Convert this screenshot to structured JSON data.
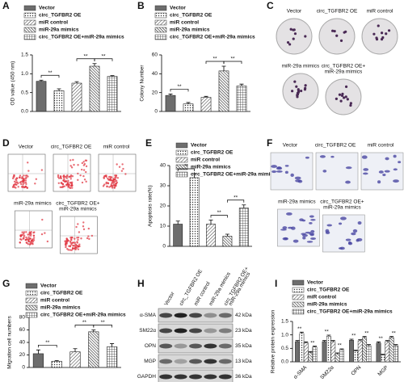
{
  "chart_data": [
    {
      "panel": "A",
      "type": "bar",
      "ylabel": "OD value (450 nm)",
      "categories": [
        "Vector",
        "circ_TGFBR2 OE",
        "miR control",
        "miR-29a mimics",
        "circ_TGFBR2 OE+miR-29a mimics"
      ],
      "values": [
        0.8,
        0.55,
        0.75,
        1.2,
        0.93
      ],
      "errors": [
        0.03,
        0.05,
        0.04,
        0.07,
        0.02
      ],
      "ylim": [
        0,
        1.5
      ],
      "yticks": [
        {
          "value": 0,
          "label": "0.0"
        },
        0.5,
        {
          "value": 1,
          "label": "1.0"
        },
        1.5
      ],
      "significance": [
        "**",
        "**",
        "**"
      ]
    },
    {
      "panel": "B",
      "type": "bar",
      "ylabel": "Colony Number",
      "categories": [
        "Vector",
        "circ_TGFBR2 OE",
        "miR control",
        "miR-29a mimics",
        "circ_TGFBR2 OE+miR-29a mimics"
      ],
      "values": [
        17,
        8,
        15,
        43,
        27
      ],
      "errors": [
        1.5,
        1.5,
        1,
        5,
        2
      ],
      "ylim": [
        0,
        60
      ],
      "yticks": [
        0,
        20,
        40,
        60
      ],
      "significance": [
        "**",
        "**",
        "**"
      ]
    },
    {
      "panel": "E",
      "type": "bar",
      "ylabel": "Apoptosis rate(%)",
      "categories": [
        "Vector",
        "circ_TGFBR2 OE",
        "miR control",
        "miR-29a mimics",
        "circ_TGFBR2 OE+miR-29a mimics"
      ],
      "values": [
        11,
        34,
        11,
        5,
        19
      ],
      "errors": [
        1.5,
        2,
        2,
        1,
        1.5
      ],
      "ylim": [
        0,
        40
      ],
      "yticks": [
        0,
        10,
        20,
        30,
        40
      ],
      "significance": [
        "**",
        "**",
        "**"
      ]
    },
    {
      "panel": "G",
      "type": "bar",
      "ylabel": "Migration cell numbers",
      "categories": [
        "Vector",
        "circ_TGFBR2 OE",
        "miR control",
        "miR-29a mimics",
        "circ_TGFBR2 OE+miR-29a mimics"
      ],
      "values": [
        22,
        10,
        25,
        57,
        33
      ],
      "errors": [
        6,
        1,
        5,
        3,
        5
      ],
      "ylim": [
        0,
        80
      ],
      "yticks": [
        0,
        20,
        40,
        60,
        80
      ],
      "significance": [
        "**",
        "**",
        "**"
      ]
    },
    {
      "panel": "I",
      "type": "grouped_bar",
      "ylabel": "Relative protein expression",
      "categories": [
        "α-SMA",
        "SM22α",
        "OPN",
        "MGP"
      ],
      "series": [
        {
          "name": "Vector",
          "values": [
            0.75,
            0.75,
            0.8,
            0.7
          ],
          "errors": [
            0.04,
            0.04,
            0.04,
            0.04
          ]
        },
        {
          "name": "circ_TGFBR2 OE",
          "values": [
            1.05,
            0.95,
            0.4,
            0.25
          ],
          "errors": [
            0.05,
            0.04,
            0.03,
            0.03
          ]
        },
        {
          "name": "miR control",
          "values": [
            0.7,
            0.75,
            0.78,
            0.75
          ],
          "errors": [
            0.04,
            0.04,
            0.04,
            0.04
          ]
        },
        {
          "name": "miR-29a mimics",
          "values": [
            0.35,
            0.3,
            0.9,
            0.9
          ],
          "errors": [
            0.03,
            0.03,
            0.04,
            0.04
          ]
        },
        {
          "name": "circ_TGFBR2 OE+miR-29a mimics",
          "values": [
            0.55,
            0.45,
            0.6,
            0.6
          ],
          "errors": [
            0.03,
            0.03,
            0.04,
            0.04
          ]
        }
      ],
      "ylim": [
        0,
        1.5
      ],
      "yticks": [
        {
          "value": 0,
          "label": "0.0"
        },
        0.5,
        {
          "value": 1,
          "label": "1.0"
        },
        1.5
      ],
      "significance": [
        "**",
        "**",
        "**",
        "**",
        "**",
        "**",
        "**",
        "**"
      ]
    }
  ],
  "images": [
    {
      "panel": "C",
      "labels": [
        [
          "Vector"
        ],
        [
          "circ_TGFBR2 OE"
        ],
        [
          "miR control"
        ],
        [
          "miR-29a mimics"
        ],
        [
          "circ_TGFBR2 OE+",
          "miR-29a mimics"
        ]
      ]
    },
    {
      "panel": "D",
      "labels": [
        [
          "Vector"
        ],
        [
          "circ_TGFBR2 OE"
        ],
        [
          "miR control"
        ],
        [
          "miR-29a mimics"
        ],
        [
          "circ_TGFBR2 OE+",
          "miR-29a mimics"
        ]
      ]
    },
    {
      "panel": "F",
      "labels": [
        [
          "Vector"
        ],
        [
          "circ_TGFBR2 OE"
        ],
        [
          "miR control"
        ],
        [
          "miR-29a mimics"
        ],
        [
          "circ_TGFBR2 OE+",
          "miR-29a mimics"
        ]
      ]
    }
  ],
  "blot": {
    "panel": "H",
    "lanes": [
      [
        "Vector"
      ],
      [
        "circ_TGFBR2 OE"
      ],
      [
        "miR control"
      ],
      [
        "miR-29a mimics"
      ],
      [
        "circ_TGFBR2 OE+",
        "miR-29a mimics"
      ]
    ],
    "proteins": [
      "α-SMA",
      "SM22α",
      "OPN",
      "MGP",
      "GAPDH"
    ],
    "sizes": [
      "42 kDa",
      "23 kDa",
      "35 kDa",
      "13 kDa",
      "36 kDa"
    ]
  }
}
